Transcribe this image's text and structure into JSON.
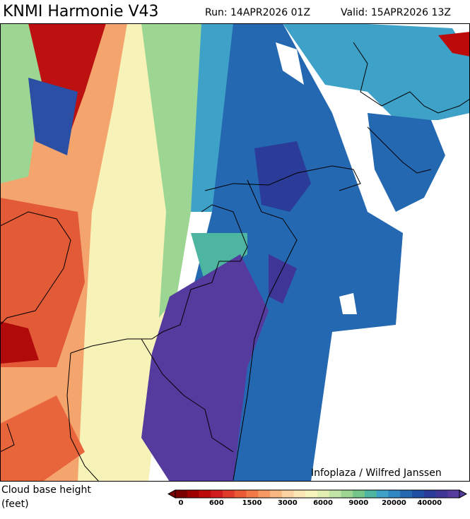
{
  "header": {
    "title": "KNMI Harmonie V43",
    "run": "Run: 14APR2026 01Z",
    "valid": "Valid: 15APR2026 13Z"
  },
  "map": {
    "credit": "Infoplaza / Wilfred Janssen"
  },
  "legend": {
    "label_lines": [
      "Cloud base height",
      "(feet)"
    ],
    "colors": [
      "#7a0000",
      "#9e0000",
      "#bd0a0a",
      "#d01c1c",
      "#e03a2a",
      "#ea5a34",
      "#f27a48",
      "#f69a62",
      "#f9b882",
      "#fbd2a2",
      "#fce6b6",
      "#f8f5bc",
      "#e2f1b2",
      "#c2e4a4",
      "#9cd692",
      "#74c688",
      "#4eb6a0",
      "#3ea2c8",
      "#2e86c2",
      "#2468b2",
      "#1f4fa4",
      "#2a3b98",
      "#3e3596",
      "#553b9e"
    ],
    "ticks": [
      "0",
      "600",
      "1500",
      "3000",
      "6000",
      "9000",
      "20000",
      "40000"
    ]
  }
}
